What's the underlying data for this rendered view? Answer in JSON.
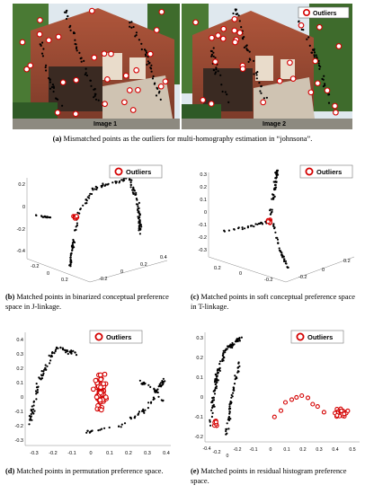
{
  "figure_a": {
    "legend": "Outliers",
    "image1_label": "Image 1",
    "image2_label": "Image 2",
    "caption_tag": "(a)",
    "caption_text": " Mismatched points as the outliers for multi-homography estimation in “johnsona”."
  },
  "panels": [
    {
      "id": "b",
      "legend": "Outliers",
      "caption_tag": "(b)",
      "caption_text": " Matched points in binarized conceptual preference space in J-linkage.",
      "z_ticks": [
        "0.2",
        "0",
        "-0.2",
        "-0.4"
      ],
      "x_ticks": [
        "0.4",
        "0.2",
        "0",
        "-0.2"
      ],
      "y_ticks": [
        "-0.2",
        "0",
        "0.2",
        "0.4"
      ]
    },
    {
      "id": "c",
      "legend": "Outliers",
      "caption_tag": "(c)",
      "caption_text": " Matched points in soft conceptual preference space in T-linkage.",
      "z_ticks": [
        "0.3",
        "0.2",
        "0.1",
        "0",
        "-0.1",
        "-0.2",
        "-0.3"
      ],
      "x_ticks": [
        "0.2",
        "0",
        "-0.2"
      ],
      "y_ticks": [
        "-0.2",
        "0",
        "0.2"
      ]
    },
    {
      "id": "d",
      "legend": "Outliers",
      "caption_tag": "(d)",
      "caption_text": " Matched points in permutation preference space.",
      "z_ticks": [
        "0.4",
        "0.3",
        "0.2",
        "0.1",
        "0",
        "-0.1",
        "-0.2",
        "-0.3"
      ],
      "x_ticks": [
        "-0.3",
        "-0.2",
        "-0.1",
        "0",
        "0.1",
        "0.2",
        "0.3",
        "0.4"
      ],
      "y_ticks": []
    },
    {
      "id": "e",
      "legend": "Outliers",
      "caption_tag": "(e)",
      "caption_text": " Matched points in residual histogram preference space.",
      "z_ticks": [
        "0.3",
        "0.2",
        "0.1",
        "0",
        "-0.1",
        "-0.2"
      ],
      "x_ticks": [
        "-0.4",
        "-0.2",
        "0",
        "-0.2",
        "-0.1",
        "0",
        "0.1",
        "0.2",
        "0.3",
        "0.4",
        "0.5"
      ],
      "y_ticks": []
    }
  ],
  "colors": {
    "outlier": "#d40000",
    "inlier": "#000000",
    "brick": "#9a4a34",
    "foliage": "#3e6b2c",
    "sky": "#dfe8ee"
  }
}
